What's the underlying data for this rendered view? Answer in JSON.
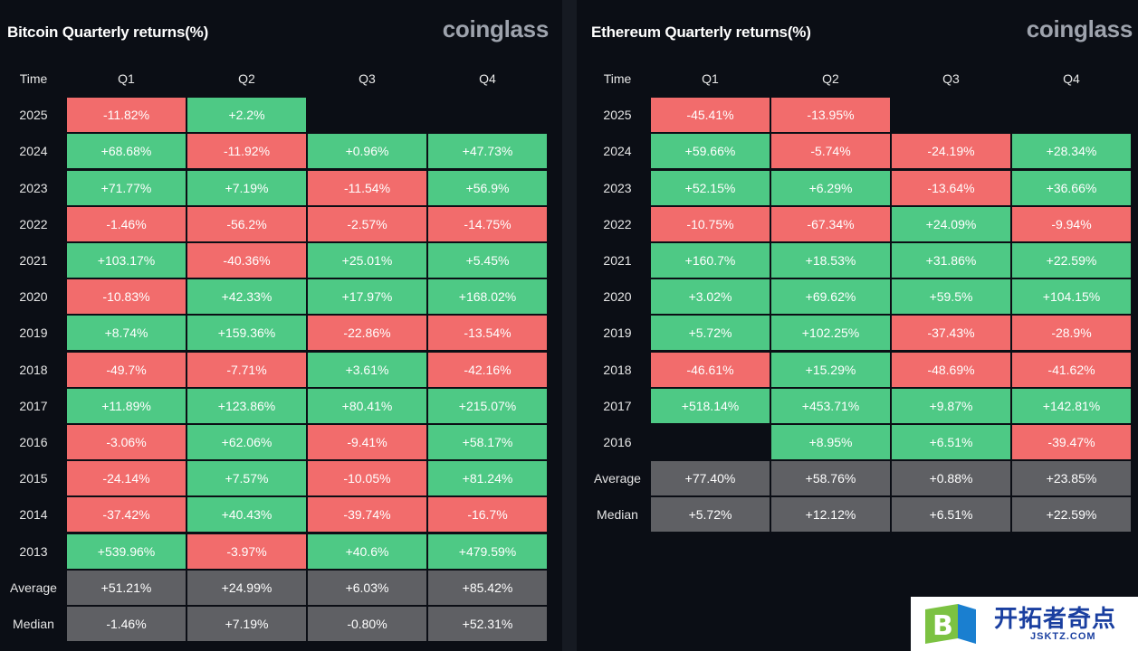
{
  "watermark": {
    "logo_text": "开拓者奇点",
    "logo_sub": "JSKTZ.COM",
    "logo_letter": "B"
  },
  "chart_data": [
    {
      "type": "table",
      "title": "Bitcoin Quarterly returns(%)",
      "brand": "coinglass",
      "row_header": "Time",
      "columns": [
        "Q1",
        "Q2",
        "Q3",
        "Q4"
      ],
      "rows": [
        {
          "label": "2025",
          "values": [
            "-11.82%",
            "+2.2%",
            "",
            ""
          ]
        },
        {
          "label": "2024",
          "values": [
            "+68.68%",
            "-11.92%",
            "+0.96%",
            "+47.73%"
          ]
        },
        {
          "label": "2023",
          "values": [
            "+71.77%",
            "+7.19%",
            "-11.54%",
            "+56.9%"
          ]
        },
        {
          "label": "2022",
          "values": [
            "-1.46%",
            "-56.2%",
            "-2.57%",
            "-14.75%"
          ]
        },
        {
          "label": "2021",
          "values": [
            "+103.17%",
            "-40.36%",
            "+25.01%",
            "+5.45%"
          ]
        },
        {
          "label": "2020",
          "values": [
            "-10.83%",
            "+42.33%",
            "+17.97%",
            "+168.02%"
          ]
        },
        {
          "label": "2019",
          "values": [
            "+8.74%",
            "+159.36%",
            "-22.86%",
            "-13.54%"
          ]
        },
        {
          "label": "2018",
          "values": [
            "-49.7%",
            "-7.71%",
            "+3.61%",
            "-42.16%"
          ]
        },
        {
          "label": "2017",
          "values": [
            "+11.89%",
            "+123.86%",
            "+80.41%",
            "+215.07%"
          ]
        },
        {
          "label": "2016",
          "values": [
            "-3.06%",
            "+62.06%",
            "-9.41%",
            "+58.17%"
          ]
        },
        {
          "label": "2015",
          "values": [
            "-24.14%",
            "+7.57%",
            "-10.05%",
            "+81.24%"
          ]
        },
        {
          "label": "2014",
          "values": [
            "-37.42%",
            "+40.43%",
            "-39.74%",
            "-16.7%"
          ]
        },
        {
          "label": "2013",
          "values": [
            "+539.96%",
            "-3.97%",
            "+40.6%",
            "+479.59%"
          ]
        }
      ],
      "stats": [
        {
          "label": "Average",
          "values": [
            "+51.21%",
            "+24.99%",
            "+6.03%",
            "+85.42%"
          ]
        },
        {
          "label": "Median",
          "values": [
            "-1.46%",
            "+7.19%",
            "-0.80%",
            "+52.31%"
          ]
        }
      ]
    },
    {
      "type": "table",
      "title": "Ethereum Quarterly returns(%)",
      "brand": "coinglass",
      "row_header": "Time",
      "columns": [
        "Q1",
        "Q2",
        "Q3",
        "Q4"
      ],
      "rows": [
        {
          "label": "2025",
          "values": [
            "-45.41%",
            "-13.95%",
            "",
            ""
          ]
        },
        {
          "label": "2024",
          "values": [
            "+59.66%",
            "-5.74%",
            "-24.19%",
            "+28.34%"
          ]
        },
        {
          "label": "2023",
          "values": [
            "+52.15%",
            "+6.29%",
            "-13.64%",
            "+36.66%"
          ]
        },
        {
          "label": "2022",
          "values": [
            "-10.75%",
            "-67.34%",
            "+24.09%",
            "-9.94%"
          ]
        },
        {
          "label": "2021",
          "values": [
            "+160.7%",
            "+18.53%",
            "+31.86%",
            "+22.59%"
          ]
        },
        {
          "label": "2020",
          "values": [
            "+3.02%",
            "+69.62%",
            "+59.5%",
            "+104.15%"
          ]
        },
        {
          "label": "2019",
          "values": [
            "+5.72%",
            "+102.25%",
            "-37.43%",
            "-28.9%"
          ]
        },
        {
          "label": "2018",
          "values": [
            "-46.61%",
            "+15.29%",
            "-48.69%",
            "-41.62%"
          ]
        },
        {
          "label": "2017",
          "values": [
            "+518.14%",
            "+453.71%",
            "+9.87%",
            "+142.81%"
          ]
        },
        {
          "label": "2016",
          "values": [
            "",
            "+8.95%",
            "+6.51%",
            "-39.47%"
          ]
        }
      ],
      "stats": [
        {
          "label": "Average",
          "values": [
            "+77.40%",
            "+58.76%",
            "+0.88%",
            "+23.85%"
          ]
        },
        {
          "label": "Median",
          "values": [
            "+5.72%",
            "+12.12%",
            "+6.51%",
            "+22.59%"
          ]
        }
      ]
    }
  ],
  "colors": {
    "positive": "#4ec985",
    "negative": "#f26c6c",
    "stat": "#5f6064",
    "background": "#0b0e15"
  }
}
